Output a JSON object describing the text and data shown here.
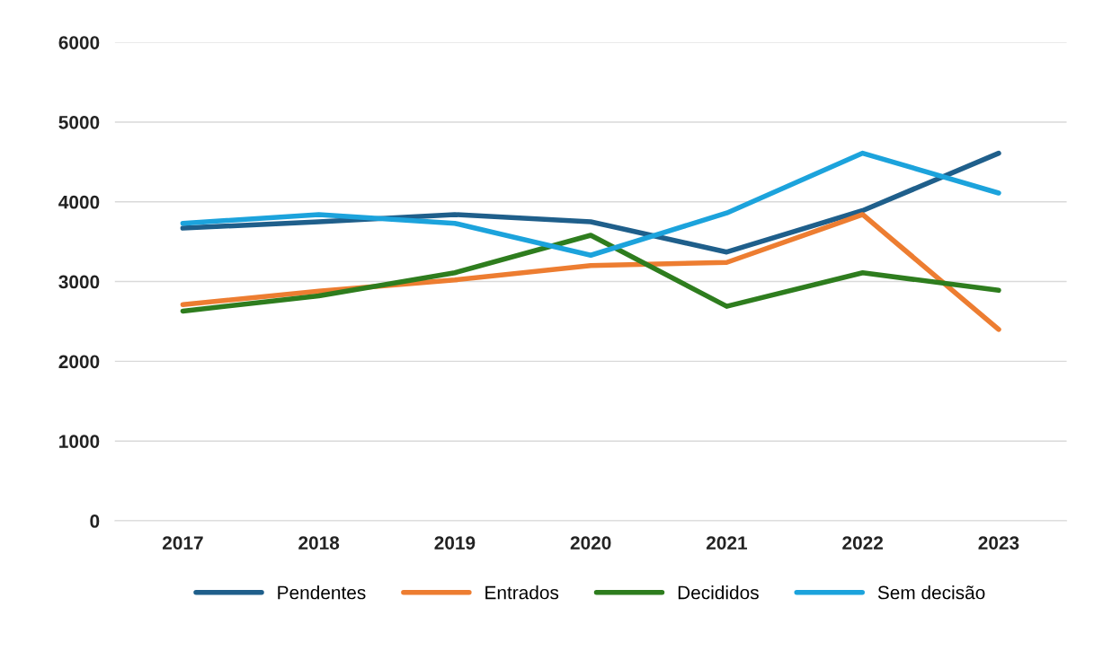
{
  "chart_data": {
    "type": "line",
    "categories": [
      "2017",
      "2018",
      "2019",
      "2020",
      "2021",
      "2022",
      "2023"
    ],
    "series": [
      {
        "name": "Pendentes",
        "color": "#1f5f8b",
        "values": [
          3670,
          3750,
          3840,
          3750,
          3370,
          3890,
          4610
        ]
      },
      {
        "name": "Entrados",
        "color": "#ed7d31",
        "values": [
          2710,
          2880,
          3020,
          3200,
          3240,
          3840,
          2400
        ]
      },
      {
        "name": "Decididos",
        "color": "#2e7d1e",
        "values": [
          2630,
          2820,
          3110,
          3580,
          2690,
          3110,
          2890
        ]
      },
      {
        "name": "Sem decisão",
        "color": "#1ca3dc",
        "values": [
          3730,
          3840,
          3730,
          3330,
          3860,
          4610,
          4110
        ]
      }
    ],
    "ylim": [
      0,
      6000
    ],
    "yticks": [
      0,
      1000,
      2000,
      3000,
      4000,
      5000,
      6000
    ],
    "grid": "y",
    "legend": "bottom",
    "marker": "none",
    "line_style": "solid"
  }
}
